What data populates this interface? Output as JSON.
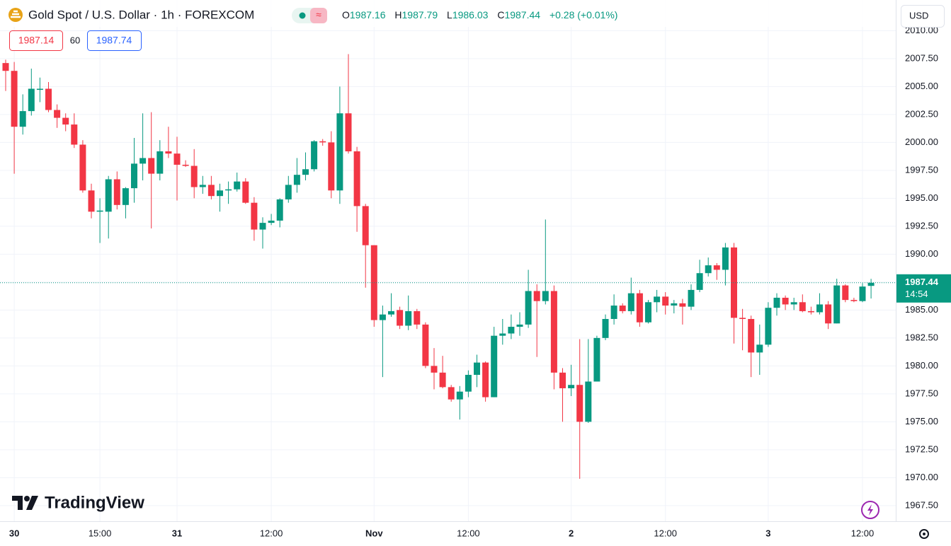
{
  "chart_data": {
    "type": "candlestick",
    "title": "Gold Spot / U.S. Dollar · 1h · FOREXCOM",
    "ohlc_keys": [
      "O",
      "H",
      "L",
      "C"
    ],
    "change": "+0.28 (+0.01%)",
    "bid": "1987.14",
    "spread": "60",
    "ask": "1987.74",
    "currency": "USD",
    "countdown": "14:54",
    "watermark": "TradingView",
    "up_color": "#089981",
    "down_color": "#f23645",
    "grid": true,
    "categories": [
      null,
      "30",
      null,
      null,
      null,
      null,
      null,
      null,
      null,
      null,
      null,
      "15:00",
      null,
      null,
      null,
      null,
      null,
      null,
      null,
      null,
      "31",
      null,
      null,
      null,
      null,
      null,
      null,
      null,
      null,
      null,
      null,
      "12:00",
      null,
      null,
      null,
      null,
      null,
      null,
      null,
      null,
      null,
      null,
      null,
      "Nov",
      null,
      null,
      null,
      null,
      null,
      null,
      null,
      null,
      null,
      null,
      "12:00",
      null,
      null,
      null,
      null,
      null,
      null,
      null,
      null,
      null,
      null,
      null,
      "2",
      null,
      null,
      null,
      null,
      null,
      null,
      null,
      null,
      null,
      null,
      "12:00",
      null,
      null,
      null,
      null,
      null,
      null,
      null,
      null,
      null,
      null,
      null,
      "3",
      null,
      null,
      null,
      null,
      null,
      null,
      null,
      null,
      null,
      null,
      "12:00",
      null
    ],
    "open": [
      2007.1,
      2006.4,
      2001.4,
      2002.8,
      2004.7,
      2004.8,
      2002.9,
      2002.2,
      2001.6,
      1999.8,
      1995.7,
      1993.8,
      1993.8,
      1996.7,
      1994.4,
      1995.9,
      1998.1,
      1998.6,
      1997.2,
      1999.2,
      1999.0,
      1998.0,
      1997.9,
      1996.0,
      1996.2,
      1995.2,
      1995.7,
      1995.8,
      1996.5,
      1994.6,
      1992.2,
      1992.8,
      1993.0,
      1994.9,
      1996.2,
      1997.1,
      1997.6,
      2000.1,
      2000.0,
      1995.7,
      2002.6,
      1999.2,
      1994.3,
      1990.8,
      1984.1,
      1984.6,
      1985.0,
      1983.6,
      1984.9,
      1983.7,
      1980.0,
      1979.4,
      1978.1,
      1977.0,
      1977.7,
      1979.2,
      1980.3,
      1977.2,
      1982.7,
      1982.9,
      1983.5,
      1983.7,
      1986.7,
      1985.8,
      1986.7,
      1979.4,
      1978.0,
      1978.3,
      1975.0,
      1978.6,
      1982.5,
      1984.2,
      1985.4,
      1984.9,
      1986.5,
      1983.9,
      1985.7,
      1986.2,
      1985.4,
      1985.6,
      1985.3,
      1986.8,
      1988.3,
      1989.0,
      1988.6,
      1990.6,
      1984.3,
      1984.2,
      1981.2,
      1981.9,
      1985.2,
      1986.1,
      1985.5,
      1985.7,
      1984.9,
      1984.8,
      1985.5,
      1983.8,
      1987.2,
      1985.9,
      1985.8,
      1987.16
    ],
    "high": [
      2007.4,
      2007.2,
      2004.3,
      2006.6,
      2005.8,
      2005.4,
      2003.4,
      2002.6,
      2002.6,
      2000.2,
      1996.3,
      1995.0,
      1997.0,
      1997.4,
      1996.0,
      2000.4,
      2002.6,
      2002.7,
      2000.2,
      2001.4,
      2000.5,
      1998.4,
      1999.4,
      1997.0,
      1997.0,
      1996.3,
      1996.5,
      1997.3,
      1996.8,
      1995.1,
      1993.3,
      1993.6,
      1995.0,
      1997.0,
      1998.6,
      1999.1,
      2000.2,
      2000.3,
      2001.0,
      2005.0,
      2007.9,
      1999.6,
      1994.5,
      1990.8,
      1985.4,
      1986.5,
      1985.3,
      1986.3,
      1985.1,
      1983.9,
      1981.6,
      1980.9,
      1978.3,
      1978.2,
      1979.6,
      1981.0,
      1980.4,
      1983.5,
      1984.2,
      1984.6,
      1984.8,
      1988.6,
      1987.3,
      1993.1,
      1987.2,
      1979.8,
      1980.1,
      1982.4,
      1982.4,
      1982.7,
      1984.6,
      1986.4,
      1985.6,
      1987.9,
      1986.8,
      1985.9,
      1986.8,
      1986.6,
      1985.9,
      1986.0,
      1987.3,
      1989.5,
      1989.7,
      1989.2,
      1991.0,
      1991.0,
      1985.1,
      1984.5,
      1983.7,
      1985.7,
      1986.5,
      1986.3,
      1986.1,
      1986.4,
      1985.3,
      1986.5,
      1985.8,
      1987.8,
      1987.3,
      1986.1,
      1987.4,
      1987.79
    ],
    "low": [
      2004.6,
      1997.2,
      2000.7,
      2002.4,
      2003.6,
      2002.7,
      2001.3,
      2001.0,
      1999.5,
      1995.5,
      1993.2,
      1991.0,
      1991.4,
      1994.0,
      1993.2,
      1994.6,
      1996.6,
      1992.3,
      1996.6,
      1998.6,
      1994.8,
      1997.8,
      1995.0,
      1995.4,
      1994.9,
      1993.8,
      1994.5,
      1995.6,
      1994.5,
      1991.2,
      1990.5,
      1992.6,
      1992.4,
      1994.6,
      1995.5,
      1996.6,
      1997.4,
      1999.7,
      1995.0,
      1994.5,
      1999.0,
      1992.0,
      1987.0,
      1983.5,
      1979.0,
      1984.4,
      1983.3,
      1983.2,
      1983.3,
      1979.8,
      1977.9,
      1978.0,
      1976.8,
      1975.2,
      1977.2,
      1978.1,
      1976.8,
      1977.2,
      1981.9,
      1982.4,
      1982.7,
      1983.4,
      1980.8,
      1985.5,
      1977.9,
      1975.0,
      1977.3,
      1969.9,
      1974.9,
      1978.6,
      1982.3,
      1983.7,
      1984.7,
      1984.6,
      1983.5,
      1983.8,
      1984.8,
      1984.6,
      1984.7,
      1983.7,
      1985.0,
      1986.6,
      1988.0,
      1987.7,
      1987.2,
      1982.0,
      1981.4,
      1979.0,
      1979.2,
      1981.7,
      1984.5,
      1985.0,
      1985.0,
      1984.8,
      1984.6,
      1984.6,
      1983.3,
      1983.8,
      1985.7,
      1985.7,
      1985.7,
      1986.03
    ],
    "close": [
      2006.4,
      2001.4,
      2002.8,
      2004.8,
      2004.8,
      2002.9,
      2002.2,
      2001.6,
      1999.8,
      1995.7,
      1993.8,
      1993.9,
      1996.7,
      1994.4,
      1995.9,
      1998.1,
      1998.6,
      1997.2,
      1999.2,
      1999.0,
      1998.0,
      1997.9,
      1996.0,
      1996.2,
      1995.2,
      1995.7,
      1995.8,
      1996.5,
      1994.6,
      1992.2,
      1992.8,
      1993.0,
      1994.9,
      1996.2,
      1997.1,
      1997.6,
      2000.1,
      2000.0,
      1995.7,
      2002.6,
      1999.2,
      1994.3,
      1990.8,
      1984.1,
      1984.6,
      1984.9,
      1983.6,
      1984.9,
      1983.7,
      1980.0,
      1979.4,
      1978.1,
      1977.0,
      1977.7,
      1979.2,
      1980.3,
      1977.2,
      1982.7,
      1982.9,
      1983.5,
      1983.7,
      1986.7,
      1985.8,
      1986.7,
      1979.4,
      1978.0,
      1978.3,
      1975.0,
      1978.6,
      1982.5,
      1984.2,
      1985.4,
      1984.9,
      1986.5,
      1983.9,
      1985.7,
      1986.2,
      1985.4,
      1985.6,
      1985.3,
      1986.8,
      1988.3,
      1989.0,
      1988.6,
      1990.6,
      1984.3,
      1984.2,
      1981.2,
      1981.9,
      1985.2,
      1986.1,
      1985.5,
      1985.7,
      1984.9,
      1984.8,
      1985.5,
      1983.8,
      1987.2,
      1985.9,
      1985.8,
      1987.1,
      1987.44
    ],
    "ylim": [
      1966.1,
      2010.4
    ],
    "yticks": [
      {
        "value": 1967.5,
        "label": "1967.50"
      },
      {
        "value": 1970,
        "label": "1970.00"
      },
      {
        "value": 1972.5,
        "label": "1972.50"
      },
      {
        "value": 1975,
        "label": "1975.00"
      },
      {
        "value": 1977.5,
        "label": "1977.50"
      },
      {
        "value": 1980,
        "label": "1980.00"
      },
      {
        "value": 1982.5,
        "label": "1982.50"
      },
      {
        "value": 1985,
        "label": "1985.00"
      },
      {
        "value": 1987.5,
        "label": "1987.50"
      },
      {
        "value": 1990,
        "label": "1990.00"
      },
      {
        "value": 1992.5,
        "label": "1992.50"
      },
      {
        "value": 1995,
        "label": "1995.00"
      },
      {
        "value": 1997.5,
        "label": "1997.50"
      },
      {
        "value": 2000,
        "label": "2000.00"
      },
      {
        "value": 2002.5,
        "label": "2002.50"
      },
      {
        "value": 2005,
        "label": "2005.00"
      },
      {
        "value": 2007.5,
        "label": "2007.50"
      },
      {
        "value": 2010,
        "label": "2010.00"
      }
    ]
  }
}
